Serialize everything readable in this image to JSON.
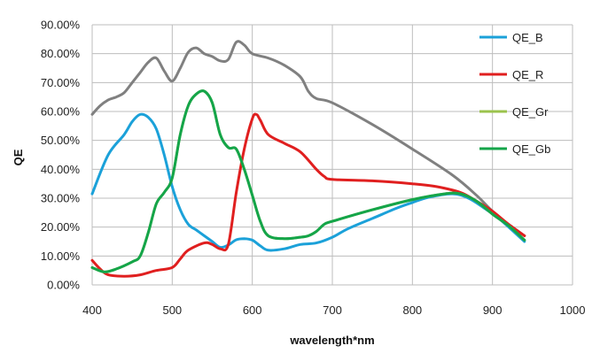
{
  "chart_data": {
    "type": "line",
    "xlabel": "wavelength*nm",
    "ylabel": "QE",
    "xlim": [
      400,
      1000
    ],
    "ylim": [
      0,
      90
    ],
    "x_ticks": [
      400,
      500,
      600,
      700,
      800,
      900,
      1000
    ],
    "x_tick_labels": [
      "400",
      "500",
      "600",
      "700",
      "800",
      "900",
      "1000"
    ],
    "y_ticks": [
      0,
      10,
      20,
      30,
      40,
      50,
      60,
      70,
      80,
      90
    ],
    "y_tick_labels": [
      "0.00%",
      "10.00%",
      "20.00%",
      "30.00%",
      "40.00%",
      "50.00%",
      "60.00%",
      "70.00%",
      "80.00%",
      "90.00%"
    ],
    "grid": true,
    "legend": "right",
    "series": [
      {
        "name": "QE_B",
        "color": "#1ba1d9",
        "points": [
          [
            400,
            31.5
          ],
          [
            420,
            45
          ],
          [
            440,
            52
          ],
          [
            450,
            56.5
          ],
          [
            460,
            59
          ],
          [
            470,
            58
          ],
          [
            480,
            54
          ],
          [
            490,
            45
          ],
          [
            500,
            34
          ],
          [
            510,
            26
          ],
          [
            520,
            21
          ],
          [
            530,
            19
          ],
          [
            540,
            17
          ],
          [
            550,
            15
          ],
          [
            560,
            13
          ],
          [
            570,
            13.8
          ],
          [
            580,
            15.6
          ],
          [
            590,
            16
          ],
          [
            600,
            15.5
          ],
          [
            610,
            13.5
          ],
          [
            620,
            12
          ],
          [
            640,
            12.5
          ],
          [
            660,
            14
          ],
          [
            680,
            14.5
          ],
          [
            700,
            16.5
          ],
          [
            720,
            19.5
          ],
          [
            750,
            23
          ],
          [
            780,
            26.5
          ],
          [
            800,
            28.5
          ],
          [
            820,
            30.3
          ],
          [
            850,
            31.5
          ],
          [
            870,
            30
          ],
          [
            890,
            26.5
          ],
          [
            910,
            22.5
          ],
          [
            940,
            15
          ]
        ]
      },
      {
        "name": "QE_R",
        "color": "#e01f1f",
        "points": [
          [
            400,
            8.5
          ],
          [
            410,
            5.5
          ],
          [
            420,
            3.5
          ],
          [
            440,
            3
          ],
          [
            460,
            3.5
          ],
          [
            480,
            5
          ],
          [
            500,
            6
          ],
          [
            510,
            9
          ],
          [
            520,
            12
          ],
          [
            540,
            14.5
          ],
          [
            550,
            14
          ],
          [
            560,
            12.5
          ],
          [
            570,
            14
          ],
          [
            580,
            32
          ],
          [
            590,
            47
          ],
          [
            600,
            57.5
          ],
          [
            605,
            59
          ],
          [
            610,
            57
          ],
          [
            620,
            52
          ],
          [
            640,
            49
          ],
          [
            660,
            46
          ],
          [
            680,
            40
          ],
          [
            690,
            37.5
          ],
          [
            700,
            36.5
          ],
          [
            750,
            36
          ],
          [
            800,
            35
          ],
          [
            830,
            34
          ],
          [
            860,
            32
          ],
          [
            880,
            29
          ],
          [
            900,
            25.5
          ],
          [
            920,
            21
          ],
          [
            940,
            17
          ]
        ]
      },
      {
        "name": "QE_Gr",
        "color": "#9bc34c",
        "points": [
          [
            400,
            6
          ],
          [
            415,
            4.5
          ],
          [
            430,
            5.5
          ],
          [
            450,
            8
          ],
          [
            460,
            10
          ],
          [
            470,
            18
          ],
          [
            480,
            28
          ],
          [
            490,
            32
          ],
          [
            500,
            37
          ],
          [
            510,
            52
          ],
          [
            520,
            62
          ],
          [
            530,
            66
          ],
          [
            540,
            67
          ],
          [
            550,
            63
          ],
          [
            560,
            52
          ],
          [
            570,
            47.5
          ],
          [
            580,
            47
          ],
          [
            590,
            40
          ],
          [
            600,
            31
          ],
          [
            610,
            22
          ],
          [
            620,
            17
          ],
          [
            640,
            16
          ],
          [
            660,
            16.5
          ],
          [
            670,
            17
          ],
          [
            680,
            18.5
          ],
          [
            690,
            21
          ],
          [
            700,
            22
          ],
          [
            750,
            26
          ],
          [
            800,
            29.5
          ],
          [
            840,
            31.5
          ],
          [
            860,
            31.5
          ],
          [
            880,
            29
          ],
          [
            900,
            24.5
          ],
          [
            920,
            20.5
          ],
          [
            940,
            15.5
          ]
        ]
      },
      {
        "name": "QE_Gb",
        "color": "#14a54a",
        "points": [
          [
            400,
            6
          ],
          [
            415,
            4.5
          ],
          [
            430,
            5.5
          ],
          [
            450,
            8
          ],
          [
            460,
            10
          ],
          [
            470,
            18
          ],
          [
            480,
            28
          ],
          [
            490,
            32
          ],
          [
            500,
            37
          ],
          [
            510,
            52
          ],
          [
            520,
            62
          ],
          [
            530,
            66
          ],
          [
            540,
            67
          ],
          [
            550,
            63
          ],
          [
            560,
            52
          ],
          [
            570,
            47.5
          ],
          [
            580,
            47
          ],
          [
            590,
            40
          ],
          [
            600,
            31
          ],
          [
            610,
            22
          ],
          [
            620,
            17
          ],
          [
            640,
            16
          ],
          [
            660,
            16.5
          ],
          [
            670,
            17
          ],
          [
            680,
            18.5
          ],
          [
            690,
            21
          ],
          [
            700,
            22
          ],
          [
            750,
            26
          ],
          [
            800,
            29.5
          ],
          [
            840,
            31.5
          ],
          [
            860,
            31.5
          ],
          [
            880,
            29
          ],
          [
            900,
            24.5
          ],
          [
            920,
            20.5
          ],
          [
            940,
            15.5
          ]
        ]
      },
      {
        "color": "#808080",
        "points": [
          [
            400,
            59
          ],
          [
            410,
            62
          ],
          [
            420,
            64
          ],
          [
            430,
            65
          ],
          [
            440,
            66.5
          ],
          [
            450,
            70
          ],
          [
            460,
            73.5
          ],
          [
            470,
            77
          ],
          [
            480,
            78.5
          ],
          [
            490,
            74
          ],
          [
            500,
            70.5
          ],
          [
            510,
            75
          ],
          [
            520,
            80.5
          ],
          [
            530,
            82
          ],
          [
            540,
            80
          ],
          [
            550,
            79
          ],
          [
            560,
            77.5
          ],
          [
            570,
            78
          ],
          [
            580,
            84
          ],
          [
            590,
            83
          ],
          [
            600,
            80
          ],
          [
            620,
            78.5
          ],
          [
            640,
            76
          ],
          [
            660,
            72
          ],
          [
            670,
            67
          ],
          [
            680,
            64.5
          ],
          [
            700,
            63
          ],
          [
            750,
            55.5
          ],
          [
            800,
            47
          ],
          [
            850,
            38
          ],
          [
            880,
            31
          ],
          [
            900,
            25.5
          ],
          [
            920,
            21
          ],
          [
            940,
            17
          ]
        ]
      }
    ]
  }
}
